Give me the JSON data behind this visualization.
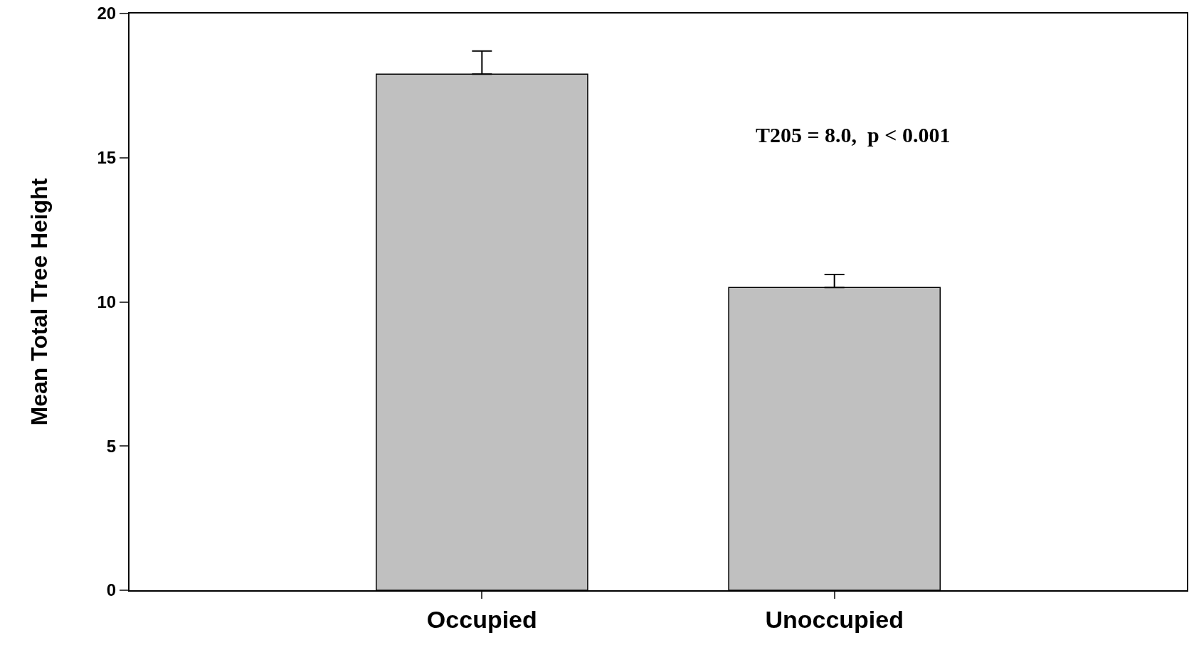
{
  "chart_data": {
    "type": "bar",
    "categories": [
      "Occupied",
      "Unoccupied"
    ],
    "values": [
      17.9,
      10.5
    ],
    "errors": [
      [
        17.9,
        18.7
      ],
      [
        10.5,
        10.95
      ]
    ],
    "color": "#c0c0c0",
    "ylabel": "Mean Total Tree Height",
    "ylim": [
      0,
      20
    ],
    "yticks": [
      0,
      5,
      10,
      15,
      20
    ],
    "grid": false,
    "annotations": [
      "T205 = 8.0,  p < 0.001"
    ]
  }
}
